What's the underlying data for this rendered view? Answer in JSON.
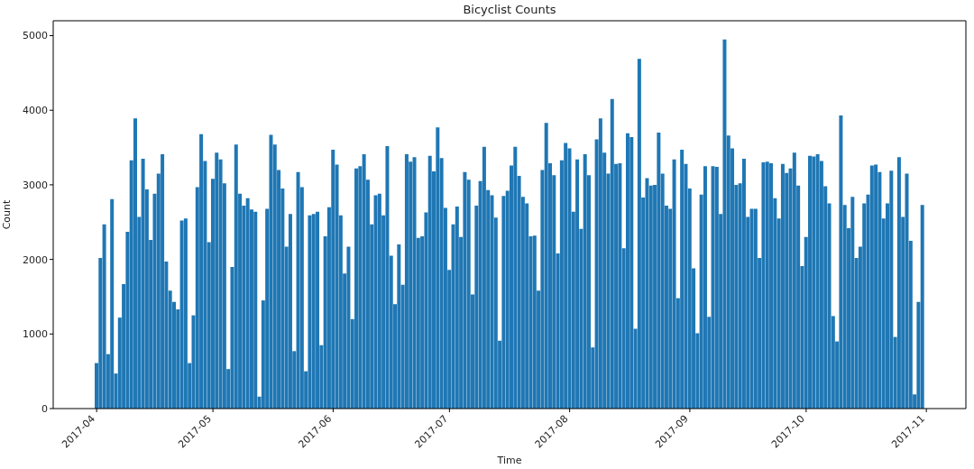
{
  "chart_data": {
    "type": "bar",
    "title": "Bicyclist Counts",
    "xlabel": "Time",
    "ylabel": "Count",
    "color": "#1f77b4",
    "x": [
      "2017-04-01",
      "2017-04-02",
      "2017-04-03",
      "2017-04-04",
      "2017-04-05",
      "2017-04-06",
      "2017-04-07",
      "2017-04-08",
      "2017-04-09",
      "2017-04-10",
      "2017-04-11",
      "2017-04-12",
      "2017-04-13",
      "2017-04-14",
      "2017-04-15",
      "2017-04-16",
      "2017-04-17",
      "2017-04-18",
      "2017-04-19",
      "2017-04-20",
      "2017-04-21",
      "2017-04-22",
      "2017-04-23",
      "2017-04-24",
      "2017-04-25",
      "2017-04-26",
      "2017-04-27",
      "2017-04-28",
      "2017-04-29",
      "2017-04-30",
      "2017-05-01",
      "2017-05-02",
      "2017-05-03",
      "2017-05-04",
      "2017-05-05",
      "2017-05-06",
      "2017-05-07",
      "2017-05-08",
      "2017-05-09",
      "2017-05-10",
      "2017-05-11",
      "2017-05-12",
      "2017-05-13",
      "2017-05-14",
      "2017-05-15",
      "2017-05-16",
      "2017-05-17",
      "2017-05-18",
      "2017-05-19",
      "2017-05-20",
      "2017-05-21",
      "2017-05-22",
      "2017-05-23",
      "2017-05-24",
      "2017-05-25",
      "2017-05-26",
      "2017-05-27",
      "2017-05-28",
      "2017-05-29",
      "2017-05-30",
      "2017-05-31",
      "2017-06-01",
      "2017-06-02",
      "2017-06-03",
      "2017-06-04",
      "2017-06-05",
      "2017-06-06",
      "2017-06-07",
      "2017-06-08",
      "2017-06-09",
      "2017-06-10",
      "2017-06-11",
      "2017-06-12",
      "2017-06-13",
      "2017-06-14",
      "2017-06-15",
      "2017-06-16",
      "2017-06-17",
      "2017-06-18",
      "2017-06-19",
      "2017-06-20",
      "2017-06-21",
      "2017-06-22",
      "2017-06-23",
      "2017-06-24",
      "2017-06-25",
      "2017-06-26",
      "2017-06-27",
      "2017-06-28",
      "2017-06-29",
      "2017-06-30",
      "2017-07-01",
      "2017-07-02",
      "2017-07-03",
      "2017-07-04",
      "2017-07-05",
      "2017-07-06",
      "2017-07-07",
      "2017-07-08",
      "2017-07-09",
      "2017-07-10",
      "2017-07-11",
      "2017-07-12",
      "2017-07-13",
      "2017-07-14",
      "2017-07-15",
      "2017-07-16",
      "2017-07-17",
      "2017-07-18",
      "2017-07-19",
      "2017-07-20",
      "2017-07-21",
      "2017-07-22",
      "2017-07-23",
      "2017-07-24",
      "2017-07-25",
      "2017-07-26",
      "2017-07-27",
      "2017-07-28",
      "2017-07-29",
      "2017-07-30",
      "2017-07-31",
      "2017-08-01",
      "2017-08-02",
      "2017-08-03",
      "2017-08-04",
      "2017-08-05",
      "2017-08-06",
      "2017-08-07",
      "2017-08-08",
      "2017-08-09",
      "2017-08-10",
      "2017-08-11",
      "2017-08-12",
      "2017-08-13",
      "2017-08-14",
      "2017-08-15",
      "2017-08-16",
      "2017-08-17",
      "2017-08-18",
      "2017-08-19",
      "2017-08-20",
      "2017-08-21",
      "2017-08-22",
      "2017-08-23",
      "2017-08-24",
      "2017-08-25",
      "2017-08-26",
      "2017-08-27",
      "2017-08-28",
      "2017-08-29",
      "2017-08-30",
      "2017-08-31",
      "2017-09-01",
      "2017-09-02",
      "2017-09-03",
      "2017-09-04",
      "2017-09-05",
      "2017-09-06",
      "2017-09-07",
      "2017-09-08",
      "2017-09-09",
      "2017-09-10",
      "2017-09-11",
      "2017-09-12",
      "2017-09-13",
      "2017-09-14",
      "2017-09-15",
      "2017-09-16",
      "2017-09-17",
      "2017-09-18",
      "2017-09-19",
      "2017-09-20",
      "2017-09-21",
      "2017-09-22",
      "2017-09-23",
      "2017-09-24",
      "2017-09-25",
      "2017-09-26",
      "2017-09-27",
      "2017-09-28",
      "2017-09-29",
      "2017-09-30",
      "2017-10-01",
      "2017-10-02",
      "2017-10-03",
      "2017-10-04",
      "2017-10-05",
      "2017-10-06",
      "2017-10-07",
      "2017-10-08",
      "2017-10-09",
      "2017-10-10",
      "2017-10-11",
      "2017-10-12",
      "2017-10-13",
      "2017-10-14",
      "2017-10-15",
      "2017-10-16",
      "2017-10-17",
      "2017-10-18",
      "2017-10-19",
      "2017-10-20",
      "2017-10-21",
      "2017-10-22",
      "2017-10-23",
      "2017-10-24",
      "2017-10-25",
      "2017-10-26",
      "2017-10-27",
      "2017-10-28",
      "2017-10-29",
      "2017-10-30",
      "2017-10-31"
    ],
    "values": [
      610,
      2020,
      2470,
      730,
      2810,
      470,
      1220,
      1670,
      2370,
      3330,
      3890,
      2570,
      3350,
      2940,
      2260,
      2880,
      3150,
      3410,
      1970,
      1580,
      1430,
      1330,
      2520,
      2550,
      610,
      1250,
      2970,
      3680,
      3320,
      2230,
      3080,
      3430,
      3340,
      3020,
      530,
      1900,
      3540,
      2880,
      2720,
      2820,
      2670,
      2640,
      160,
      1450,
      2680,
      3670,
      3540,
      3200,
      2950,
      2170,
      2610,
      770,
      3170,
      2970,
      500,
      2590,
      2610,
      2640,
      850,
      2310,
      2700,
      3470,
      3270,
      2590,
      1810,
      2170,
      1200,
      3220,
      3250,
      3410,
      3070,
      2470,
      2860,
      2880,
      2590,
      3520,
      2050,
      1400,
      2200,
      1660,
      3410,
      3310,
      3370,
      2290,
      2310,
      2630,
      3390,
      3180,
      3770,
      3360,
      2690,
      1860,
      2470,
      2710,
      2300,
      3170,
      3070,
      1530,
      2720,
      3050,
      3510,
      2930,
      2860,
      2560,
      910,
      2850,
      2920,
      3260,
      3510,
      3120,
      2840,
      2750,
      2310,
      2320,
      1580,
      3200,
      3830,
      3290,
      3130,
      2080,
      3330,
      3560,
      3490,
      2640,
      3340,
      2410,
      3410,
      3130,
      820,
      3610,
      3890,
      3430,
      3150,
      4150,
      3280,
      3290,
      2150,
      3690,
      3640,
      1070,
      4690,
      2830,
      3090,
      2990,
      3000,
      3700,
      3150,
      2720,
      2680,
      3340,
      1480,
      3470,
      3280,
      2950,
      1880,
      1010,
      2870,
      3250,
      1230,
      3250,
      3240,
      2610,
      4950,
      3660,
      3490,
      3000,
      3020,
      3350,
      2570,
      2680,
      2680,
      2020,
      3300,
      3310,
      3290,
      2820,
      2550,
      3280,
      3160,
      3220,
      3430,
      2990,
      1910,
      2300,
      3390,
      3380,
      3410,
      3320,
      2980,
      2750,
      1240,
      900,
      3930,
      2730,
      2420,
      2840,
      2020,
      2170,
      2750,
      2870,
      3260,
      3270,
      3170,
      2550,
      2750,
      3190,
      960,
      3370,
      2570,
      3150,
      2250,
      190,
      1430,
      2730
    ],
    "xlim": [
      "2017-03-20T19:12",
      "2017-11-11T04:48"
    ],
    "xticks": [
      "2017-04",
      "2017-05",
      "2017-06",
      "2017-07",
      "2017-08",
      "2017-09",
      "2017-10",
      "2017-11"
    ],
    "ylim": [
      0,
      5200
    ],
    "yticks": [
      0,
      1000,
      2000,
      3000,
      4000,
      5000
    ]
  }
}
